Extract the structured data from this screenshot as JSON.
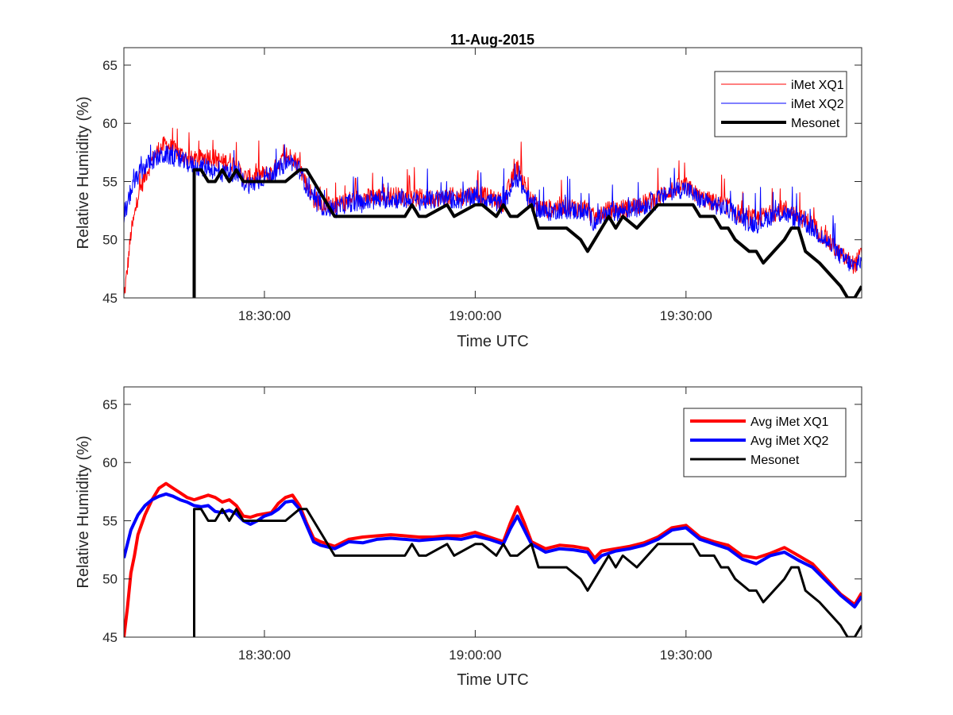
{
  "chart_data": [
    {
      "type": "line",
      "title": "11-Aug-2015",
      "xlabel": "Time UTC",
      "ylabel": "Relative Humidity (%)",
      "xlim": [
        "18:10:00",
        "19:55:00"
      ],
      "ylim": [
        45,
        66.5
      ],
      "xticks": [
        "18:30:00",
        "19:00:00",
        "19:30:00"
      ],
      "yticks": [
        45,
        50,
        55,
        60,
        65
      ],
      "legend_position": "top-right",
      "series": [
        {
          "name": "iMet XQ1",
          "color": "#ff0000",
          "noisy": true,
          "x": [
            "18:10:00",
            "18:10:30",
            "18:11:00",
            "18:11:30",
            "18:12:00",
            "18:13:00",
            "18:14:00",
            "18:15:00",
            "18:16:00",
            "18:17:00",
            "18:18:00",
            "18:19:00",
            "18:20:00",
            "18:21:00",
            "18:22:00",
            "18:23:00",
            "18:24:00",
            "18:25:00",
            "18:26:00",
            "18:27:00",
            "18:28:00",
            "18:29:00",
            "18:30:00",
            "18:31:00",
            "18:32:00",
            "18:33:00",
            "18:34:00",
            "18:35:00",
            "18:36:00",
            "18:37:00",
            "18:38:00",
            "18:40:00",
            "18:42:00",
            "18:44:00",
            "18:46:00",
            "18:48:00",
            "18:50:00",
            "18:52:00",
            "18:54:00",
            "18:56:00",
            "18:58:00",
            "19:00:00",
            "19:02:00",
            "19:04:00",
            "19:05:00",
            "19:06:00",
            "19:07:00",
            "19:08:00",
            "19:10:00",
            "19:12:00",
            "19:14:00",
            "19:16:00",
            "19:17:00",
            "19:18:00",
            "19:20:00",
            "19:22:00",
            "19:24:00",
            "19:26:00",
            "19:28:00",
            "19:30:00",
            "19:32:00",
            "19:34:00",
            "19:36:00",
            "19:38:00",
            "19:40:00",
            "19:42:00",
            "19:44:00",
            "19:46:00",
            "19:48:00",
            "19:50:00",
            "19:52:00",
            "19:54:00",
            "19:55:00"
          ],
          "y": [
            45.0,
            47.5,
            50.5,
            52.0,
            53.8,
            55.5,
            56.8,
            57.8,
            58.2,
            57.8,
            57.4,
            57.0,
            56.8,
            57.0,
            57.2,
            57.0,
            56.6,
            56.8,
            56.3,
            55.4,
            55.3,
            55.5,
            55.6,
            55.7,
            56.5,
            57.0,
            57.2,
            56.3,
            54.8,
            53.5,
            53.2,
            52.8,
            53.4,
            53.6,
            53.7,
            53.8,
            53.7,
            53.6,
            53.6,
            53.7,
            53.7,
            54.0,
            53.6,
            53.2,
            54.8,
            56.2,
            54.8,
            53.2,
            52.6,
            52.9,
            52.8,
            52.6,
            51.8,
            52.4,
            52.6,
            52.8,
            53.1,
            53.6,
            54.4,
            54.6,
            53.6,
            53.2,
            52.9,
            52.0,
            51.8,
            52.2,
            52.7,
            52.0,
            51.3,
            50.0,
            48.7,
            47.8,
            48.8
          ]
        },
        {
          "name": "iMet XQ2",
          "color": "#0000ff",
          "noisy": true,
          "x": [
            "18:10:00",
            "18:11:00",
            "18:12:00",
            "18:13:00",
            "18:14:00",
            "18:15:00",
            "18:16:00",
            "18:17:00",
            "18:18:00",
            "18:19:00",
            "18:20:00",
            "18:21:00",
            "18:22:00",
            "18:23:00",
            "18:24:00",
            "18:25:00",
            "18:26:00",
            "18:27:00",
            "18:28:00",
            "18:29:00",
            "18:30:00",
            "18:31:00",
            "18:32:00",
            "18:33:00",
            "18:34:00",
            "18:35:00",
            "18:36:00",
            "18:37:00",
            "18:38:00",
            "18:40:00",
            "18:42:00",
            "18:44:00",
            "18:46:00",
            "18:48:00",
            "18:50:00",
            "18:52:00",
            "18:54:00",
            "18:56:00",
            "18:58:00",
            "19:00:00",
            "19:02:00",
            "19:04:00",
            "19:05:00",
            "19:06:00",
            "19:07:00",
            "19:08:00",
            "19:10:00",
            "19:12:00",
            "19:14:00",
            "19:16:00",
            "19:17:00",
            "19:18:00",
            "19:20:00",
            "19:22:00",
            "19:24:00",
            "19:26:00",
            "19:28:00",
            "19:30:00",
            "19:32:00",
            "19:34:00",
            "19:36:00",
            "19:38:00",
            "19:40:00",
            "19:42:00",
            "19:44:00",
            "19:46:00",
            "19:48:00",
            "19:50:00",
            "19:52:00",
            "19:54:00",
            "19:55:00"
          ],
          "y": [
            51.8,
            54.2,
            55.5,
            56.3,
            56.8,
            57.1,
            57.3,
            57.1,
            56.8,
            56.6,
            56.3,
            56.2,
            56.3,
            55.8,
            55.7,
            55.9,
            55.6,
            55.0,
            54.7,
            55.0,
            55.4,
            55.6,
            56.0,
            56.6,
            56.7,
            56.0,
            54.6,
            53.2,
            52.9,
            52.6,
            53.2,
            53.1,
            53.4,
            53.5,
            53.4,
            53.3,
            53.4,
            53.5,
            53.4,
            53.7,
            53.4,
            53.0,
            54.3,
            55.4,
            54.2,
            53.0,
            52.3,
            52.6,
            52.5,
            52.3,
            51.4,
            52.0,
            52.4,
            52.6,
            52.9,
            53.4,
            54.2,
            54.4,
            53.4,
            53.0,
            52.6,
            51.7,
            51.3,
            52.0,
            52.3,
            51.6,
            51.0,
            49.8,
            48.6,
            47.6,
            48.5
          ]
        },
        {
          "name": "Mesonet",
          "color": "#000000",
          "noisy": false,
          "x": [
            "18:20:00",
            "18:20:00",
            "18:21:00",
            "18:22:00",
            "18:23:00",
            "18:24:00",
            "18:25:00",
            "18:26:00",
            "18:27:00",
            "18:28:00",
            "18:33:00",
            "18:35:00",
            "18:36:00",
            "18:37:00",
            "18:40:00",
            "18:50:00",
            "18:51:00",
            "18:52:00",
            "18:53:00",
            "18:56:00",
            "18:57:00",
            "19:00:00",
            "19:01:00",
            "19:03:00",
            "19:04:00",
            "19:05:00",
            "19:06:00",
            "19:08:00",
            "19:09:00",
            "19:13:00",
            "19:15:00",
            "19:16:00",
            "19:17:00",
            "19:18:00",
            "19:19:00",
            "19:20:00",
            "19:21:00",
            "19:23:00",
            "19:26:00",
            "19:31:00",
            "19:32:00",
            "19:34:00",
            "19:35:00",
            "19:36:00",
            "19:37:00",
            "19:39:00",
            "19:40:00",
            "19:41:00",
            "19:44:00",
            "19:45:00",
            "19:46:00",
            "19:47:00",
            "19:49:00",
            "19:52:00",
            "19:53:00",
            "19:54:00",
            "19:55:00"
          ],
          "y": [
            45,
            56,
            56,
            55,
            55,
            56,
            55,
            56,
            55,
            55,
            55,
            56,
            56,
            55,
            52,
            52,
            53,
            52,
            52,
            53,
            52,
            53,
            53,
            52,
            53,
            52,
            52,
            53,
            51,
            51,
            50,
            49,
            50,
            51,
            52,
            51,
            52,
            51,
            53,
            53,
            52,
            52,
            51,
            51,
            50,
            49,
            49,
            48,
            50,
            51,
            51,
            49,
            48,
            46,
            45,
            45,
            46
          ]
        }
      ]
    },
    {
      "type": "line",
      "xlabel": "Time UTC",
      "ylabel": "Relative Humidity (%)",
      "xlim": [
        "18:10:00",
        "19:55:00"
      ],
      "ylim": [
        45,
        66.5
      ],
      "xticks": [
        "18:30:00",
        "19:00:00",
        "19:30:00"
      ],
      "yticks": [
        45,
        50,
        55,
        60,
        65
      ],
      "legend_position": "top-right",
      "series": [
        {
          "name": "Avg iMet XQ1",
          "color": "#ff0000",
          "noisy": false,
          "x": [
            "18:10:00",
            "18:10:30",
            "18:11:00",
            "18:11:30",
            "18:12:00",
            "18:13:00",
            "18:14:00",
            "18:15:00",
            "18:16:00",
            "18:17:00",
            "18:18:00",
            "18:19:00",
            "18:20:00",
            "18:21:00",
            "18:22:00",
            "18:23:00",
            "18:24:00",
            "18:25:00",
            "18:26:00",
            "18:27:00",
            "18:28:00",
            "18:29:00",
            "18:30:00",
            "18:31:00",
            "18:32:00",
            "18:33:00",
            "18:34:00",
            "18:35:00",
            "18:36:00",
            "18:37:00",
            "18:38:00",
            "18:40:00",
            "18:42:00",
            "18:44:00",
            "18:46:00",
            "18:48:00",
            "18:50:00",
            "18:52:00",
            "18:54:00",
            "18:56:00",
            "18:58:00",
            "19:00:00",
            "19:02:00",
            "19:04:00",
            "19:05:00",
            "19:06:00",
            "19:07:00",
            "19:08:00",
            "19:10:00",
            "19:12:00",
            "19:14:00",
            "19:16:00",
            "19:17:00",
            "19:18:00",
            "19:20:00",
            "19:22:00",
            "19:24:00",
            "19:26:00",
            "19:28:00",
            "19:30:00",
            "19:32:00",
            "19:34:00",
            "19:36:00",
            "19:38:00",
            "19:40:00",
            "19:42:00",
            "19:44:00",
            "19:46:00",
            "19:48:00",
            "19:50:00",
            "19:52:00",
            "19:54:00",
            "19:55:00"
          ],
          "y": [
            45.0,
            47.5,
            50.5,
            52.0,
            53.8,
            55.5,
            56.8,
            57.8,
            58.2,
            57.8,
            57.4,
            57.0,
            56.8,
            57.0,
            57.2,
            57.0,
            56.6,
            56.8,
            56.3,
            55.4,
            55.3,
            55.5,
            55.6,
            55.7,
            56.5,
            57.0,
            57.2,
            56.3,
            54.8,
            53.5,
            53.2,
            52.8,
            53.4,
            53.6,
            53.7,
            53.8,
            53.7,
            53.6,
            53.6,
            53.7,
            53.7,
            54.0,
            53.6,
            53.2,
            54.8,
            56.2,
            54.8,
            53.2,
            52.6,
            52.9,
            52.8,
            52.6,
            51.8,
            52.4,
            52.6,
            52.8,
            53.1,
            53.6,
            54.4,
            54.6,
            53.6,
            53.2,
            52.9,
            52.0,
            51.8,
            52.2,
            52.7,
            52.0,
            51.3,
            50.0,
            48.7,
            47.8,
            48.8
          ]
        },
        {
          "name": "Avg iMet XQ2",
          "color": "#0000ff",
          "noisy": false,
          "x": [
            "18:10:00",
            "18:11:00",
            "18:12:00",
            "18:13:00",
            "18:14:00",
            "18:15:00",
            "18:16:00",
            "18:17:00",
            "18:18:00",
            "18:19:00",
            "18:20:00",
            "18:21:00",
            "18:22:00",
            "18:23:00",
            "18:24:00",
            "18:25:00",
            "18:26:00",
            "18:27:00",
            "18:28:00",
            "18:29:00",
            "18:30:00",
            "18:31:00",
            "18:32:00",
            "18:33:00",
            "18:34:00",
            "18:35:00",
            "18:36:00",
            "18:37:00",
            "18:38:00",
            "18:40:00",
            "18:42:00",
            "18:44:00",
            "18:46:00",
            "18:48:00",
            "18:50:00",
            "18:52:00",
            "18:54:00",
            "18:56:00",
            "18:58:00",
            "19:00:00",
            "19:02:00",
            "19:04:00",
            "19:05:00",
            "19:06:00",
            "19:07:00",
            "19:08:00",
            "19:10:00",
            "19:12:00",
            "19:14:00",
            "19:16:00",
            "19:17:00",
            "19:18:00",
            "19:20:00",
            "19:22:00",
            "19:24:00",
            "19:26:00",
            "19:28:00",
            "19:30:00",
            "19:32:00",
            "19:34:00",
            "19:36:00",
            "19:38:00",
            "19:40:00",
            "19:42:00",
            "19:44:00",
            "19:46:00",
            "19:48:00",
            "19:50:00",
            "19:52:00",
            "19:54:00",
            "19:55:00"
          ],
          "y": [
            51.8,
            54.2,
            55.5,
            56.3,
            56.8,
            57.1,
            57.3,
            57.1,
            56.8,
            56.6,
            56.3,
            56.2,
            56.3,
            55.8,
            55.7,
            55.9,
            55.6,
            55.0,
            54.7,
            55.0,
            55.4,
            55.6,
            56.0,
            56.6,
            56.7,
            56.0,
            54.6,
            53.2,
            52.9,
            52.6,
            53.2,
            53.1,
            53.4,
            53.5,
            53.4,
            53.3,
            53.4,
            53.5,
            53.4,
            53.7,
            53.4,
            53.0,
            54.3,
            55.4,
            54.2,
            53.0,
            52.3,
            52.6,
            52.5,
            52.3,
            51.4,
            52.0,
            52.4,
            52.6,
            52.9,
            53.4,
            54.2,
            54.4,
            53.4,
            53.0,
            52.6,
            51.7,
            51.3,
            52.0,
            52.3,
            51.6,
            51.0,
            49.8,
            48.6,
            47.6,
            48.5
          ]
        },
        {
          "name": "Mesonet",
          "color": "#000000",
          "noisy": false,
          "x": [
            "18:20:00",
            "18:20:00",
            "18:21:00",
            "18:22:00",
            "18:23:00",
            "18:24:00",
            "18:25:00",
            "18:26:00",
            "18:27:00",
            "18:28:00",
            "18:33:00",
            "18:35:00",
            "18:36:00",
            "18:37:00",
            "18:40:00",
            "18:50:00",
            "18:51:00",
            "18:52:00",
            "18:53:00",
            "18:56:00",
            "18:57:00",
            "19:00:00",
            "19:01:00",
            "19:03:00",
            "19:04:00",
            "19:05:00",
            "19:06:00",
            "19:08:00",
            "19:09:00",
            "19:13:00",
            "19:15:00",
            "19:16:00",
            "19:17:00",
            "19:18:00",
            "19:19:00",
            "19:20:00",
            "19:21:00",
            "19:23:00",
            "19:26:00",
            "19:31:00",
            "19:32:00",
            "19:34:00",
            "19:35:00",
            "19:36:00",
            "19:37:00",
            "19:39:00",
            "19:40:00",
            "19:41:00",
            "19:44:00",
            "19:45:00",
            "19:46:00",
            "19:47:00",
            "19:49:00",
            "19:52:00",
            "19:53:00",
            "19:54:00",
            "19:55:00"
          ],
          "y": [
            45,
            56,
            56,
            55,
            55,
            56,
            55,
            56,
            55,
            55,
            55,
            56,
            56,
            55,
            52,
            52,
            53,
            52,
            52,
            53,
            52,
            53,
            53,
            52,
            53,
            52,
            52,
            53,
            51,
            51,
            50,
            49,
            50,
            51,
            52,
            51,
            52,
            51,
            53,
            53,
            52,
            52,
            51,
            51,
            50,
            49,
            49,
            48,
            50,
            51,
            51,
            49,
            48,
            46,
            45,
            45,
            46
          ]
        }
      ]
    }
  ]
}
